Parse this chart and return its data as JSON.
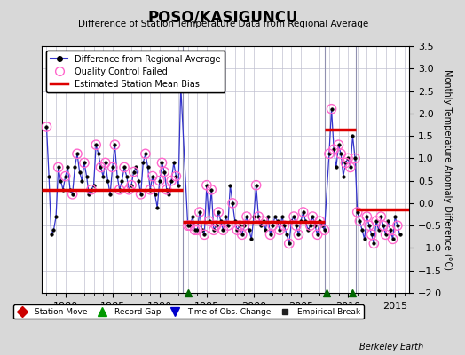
{
  "title": "POSO/KASIGUNCU",
  "subtitle": "Difference of Station Temperature Data from Regional Average",
  "ylabel": "Monthly Temperature Anomaly Difference (°C)",
  "xlabel_credit": "Berkeley Earth",
  "xlim": [
    1977.5,
    2016.5
  ],
  "ylim": [
    -2.0,
    3.5
  ],
  "yticks": [
    -2,
    -1.5,
    -1,
    -0.5,
    0,
    0.5,
    1,
    1.5,
    2,
    2.5,
    3,
    3.5
  ],
  "xticks": [
    1980,
    1985,
    1990,
    1995,
    2000,
    2005,
    2010,
    2015
  ],
  "background_color": "#d8d8d8",
  "plot_bg_color": "#ffffff",
  "grid_color": "#c0c0d0",
  "line_color": "#3333cc",
  "dot_color": "#000000",
  "bias_color": "#dd0000",
  "qc_color": "#ff66cc",
  "segments": [
    {
      "x_start": 1977.5,
      "x_end": 1992.5,
      "bias": 0.3
    },
    {
      "x_start": 1992.5,
      "x_end": 2007.5,
      "bias": -0.42
    },
    {
      "x_start": 2007.5,
      "x_end": 2010.8,
      "bias": 1.65
    },
    {
      "x_start": 2010.8,
      "x_end": 2016.5,
      "bias": -0.15
    }
  ],
  "vertical_lines": [
    1992.5,
    2007.5,
    2010.8
  ],
  "record_gaps": [
    1993.0,
    2007.7,
    2010.5
  ],
  "main_data": {
    "times": [
      1978.0,
      1978.25,
      1978.5,
      1978.75,
      1979.0,
      1979.25,
      1979.5,
      1979.75,
      1980.0,
      1980.25,
      1980.5,
      1980.75,
      1981.0,
      1981.25,
      1981.5,
      1981.75,
      1982.0,
      1982.25,
      1982.5,
      1982.75,
      1983.0,
      1983.25,
      1983.5,
      1983.75,
      1984.0,
      1984.25,
      1984.5,
      1984.75,
      1985.0,
      1985.25,
      1985.5,
      1985.75,
      1986.0,
      1986.25,
      1986.5,
      1986.75,
      1987.0,
      1987.25,
      1987.5,
      1987.75,
      1988.0,
      1988.25,
      1988.5,
      1988.75,
      1989.0,
      1989.25,
      1989.5,
      1989.75,
      1990.0,
      1990.25,
      1990.5,
      1990.75,
      1991.0,
      1991.25,
      1991.5,
      1991.75,
      1992.0,
      1992.25,
      1993.0,
      1993.25,
      1993.5,
      1993.75,
      1994.0,
      1994.25,
      1994.5,
      1994.75,
      1995.0,
      1995.25,
      1995.5,
      1995.75,
      1996.0,
      1996.25,
      1996.5,
      1996.75,
      1997.0,
      1997.25,
      1997.5,
      1997.75,
      1998.0,
      1998.25,
      1998.5,
      1998.75,
      1999.0,
      1999.25,
      1999.5,
      1999.75,
      2000.0,
      2000.25,
      2000.5,
      2000.75,
      2001.0,
      2001.25,
      2001.5,
      2001.75,
      2002.0,
      2002.25,
      2002.5,
      2002.75,
      2003.0,
      2003.25,
      2003.5,
      2003.75,
      2004.0,
      2004.25,
      2004.5,
      2004.75,
      2005.0,
      2005.25,
      2005.5,
      2005.75,
      2006.0,
      2006.25,
      2006.5,
      2006.75,
      2007.0,
      2007.25,
      2007.5,
      2008.0,
      2008.25,
      2008.5,
      2008.75,
      2009.0,
      2009.25,
      2009.5,
      2009.75,
      2010.0,
      2010.25,
      2010.5,
      2010.75,
      2011.0,
      2011.25,
      2011.5,
      2011.75,
      2012.0,
      2012.25,
      2012.5,
      2012.75,
      2013.0,
      2013.25,
      2013.5,
      2013.75,
      2014.0,
      2014.25,
      2014.5,
      2014.75,
      2015.0,
      2015.25,
      2015.5
    ],
    "values": [
      1.7,
      0.6,
      -0.7,
      -0.6,
      -0.3,
      0.8,
      0.5,
      0.3,
      0.6,
      0.8,
      0.3,
      0.2,
      0.8,
      1.1,
      0.7,
      0.5,
      0.9,
      0.6,
      0.2,
      0.3,
      0.4,
      1.3,
      1.1,
      0.8,
      0.6,
      0.9,
      0.5,
      0.2,
      0.8,
      1.3,
      0.6,
      0.3,
      0.5,
      0.8,
      0.6,
      0.3,
      0.4,
      0.7,
      0.8,
      0.5,
      0.2,
      0.9,
      1.1,
      0.8,
      0.3,
      0.6,
      0.2,
      -0.1,
      0.5,
      0.9,
      0.7,
      0.3,
      0.2,
      0.5,
      0.9,
      0.6,
      0.4,
      2.6,
      -0.5,
      -0.5,
      -0.3,
      -0.6,
      -0.6,
      -0.2,
      -0.6,
      -0.7,
      0.4,
      -0.4,
      0.3,
      -0.6,
      -0.5,
      -0.2,
      -0.4,
      -0.6,
      -0.3,
      -0.5,
      0.4,
      0.0,
      -0.4,
      -0.6,
      -0.5,
      -0.7,
      -0.5,
      -0.3,
      -0.6,
      -0.8,
      -0.3,
      0.4,
      -0.3,
      -0.5,
      -0.4,
      -0.6,
      -0.3,
      -0.7,
      -0.5,
      -0.3,
      -0.4,
      -0.6,
      -0.3,
      -0.5,
      -0.7,
      -0.9,
      -0.4,
      -0.3,
      -0.5,
      -0.7,
      -0.4,
      -0.2,
      -0.4,
      -0.6,
      -0.5,
      -0.3,
      -0.5,
      -0.7,
      -0.4,
      -0.5,
      -0.6,
      1.1,
      2.1,
      1.2,
      0.8,
      1.3,
      1.1,
      0.6,
      0.9,
      1.0,
      0.8,
      1.5,
      1.0,
      -0.2,
      -0.4,
      -0.6,
      -0.8,
      -0.3,
      -0.5,
      -0.7,
      -0.9,
      -0.4,
      -0.6,
      -0.3,
      -0.5,
      -0.7,
      -0.4,
      -0.6,
      -0.8,
      -0.3,
      -0.5,
      -0.7
    ]
  },
  "qc_failed_times": [
    1978.0,
    1979.25,
    1980.0,
    1980.75,
    1981.25,
    1982.0,
    1982.75,
    1983.25,
    1983.75,
    1984.25,
    1985.0,
    1985.25,
    1985.75,
    1986.25,
    1986.75,
    1987.0,
    1987.25,
    1988.0,
    1988.5,
    1989.0,
    1989.25,
    1990.0,
    1990.25,
    1990.5,
    1990.75,
    1991.25,
    1991.75,
    1992.25,
    1993.0,
    1993.25,
    1993.75,
    1994.0,
    1994.25,
    1994.75,
    1995.0,
    1995.25,
    1995.5,
    1995.75,
    1996.0,
    1996.25,
    1996.75,
    1997.25,
    1997.75,
    1998.25,
    1998.5,
    1998.75,
    1999.0,
    1999.25,
    2000.25,
    2000.5,
    2001.0,
    2001.75,
    2002.0,
    2002.75,
    2003.25,
    2003.75,
    2004.25,
    2004.5,
    2004.75,
    2005.25,
    2006.0,
    2006.25,
    2006.75,
    2007.0,
    2007.5,
    2008.0,
    2008.25,
    2008.5,
    2009.0,
    2009.25,
    2009.75,
    2010.0,
    2010.25,
    2010.75,
    2011.0,
    2011.25,
    2012.0,
    2012.25,
    2012.5,
    2012.75,
    2013.0,
    2013.5,
    2013.75,
    2014.0,
    2014.5,
    2014.75,
    2015.25
  ],
  "qc_failed_values": [
    1.7,
    0.8,
    0.6,
    0.2,
    1.1,
    0.9,
    0.3,
    1.3,
    0.8,
    0.9,
    0.8,
    1.3,
    0.3,
    0.8,
    0.3,
    0.4,
    0.7,
    0.2,
    1.1,
    0.3,
    0.6,
    0.5,
    0.9,
    0.7,
    0.3,
    0.5,
    0.6,
    2.6,
    -0.5,
    -0.5,
    -0.6,
    -0.6,
    -0.2,
    -0.7,
    0.4,
    -0.4,
    0.3,
    -0.6,
    -0.5,
    -0.2,
    -0.6,
    -0.5,
    0.0,
    -0.6,
    -0.5,
    -0.7,
    -0.5,
    -0.3,
    0.4,
    -0.3,
    -0.4,
    -0.7,
    -0.5,
    -0.6,
    -0.5,
    -0.9,
    -0.3,
    -0.5,
    -0.7,
    -0.2,
    -0.5,
    -0.3,
    -0.7,
    -0.4,
    -0.6,
    1.1,
    2.1,
    1.2,
    1.3,
    1.1,
    0.9,
    1.0,
    0.8,
    1.0,
    -0.2,
    -0.4,
    -0.3,
    -0.5,
    -0.7,
    -0.9,
    -0.4,
    -0.3,
    -0.5,
    -0.7,
    -0.6,
    -0.8,
    -0.5
  ]
}
